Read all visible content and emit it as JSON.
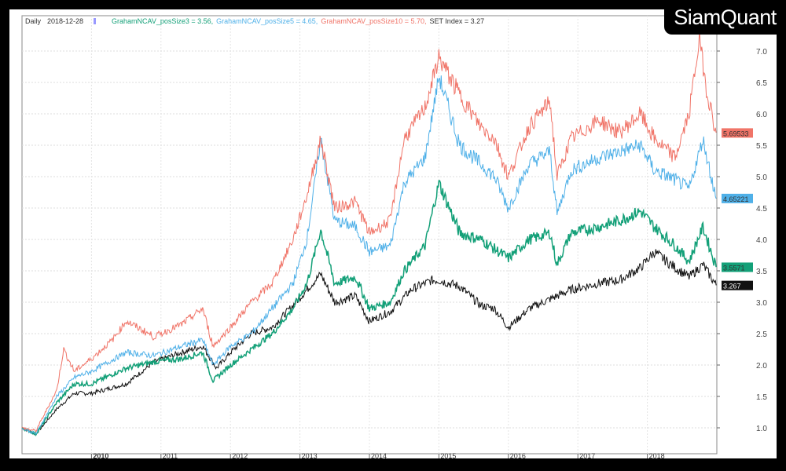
{
  "logo": "SiamQuant",
  "header": {
    "period": "Daily",
    "date": "2018-12-28"
  },
  "colors": {
    "posSize3": "#13a078",
    "posSize5": "#4fb0e8",
    "posSize10": "#f07468",
    "set": "#111111"
  },
  "chart_data": {
    "type": "line",
    "title": "",
    "xlabel": "",
    "ylabel": "",
    "xlim": [
      2009.0,
      2019.0
    ],
    "ylim": [
      0.7,
      7.4
    ],
    "grid": true,
    "x_ticks": [
      "2010",
      "2011",
      "2012",
      "2013",
      "2014",
      "2015",
      "2016",
      "2017",
      "2018"
    ],
    "y_ticks": [
      "1.0",
      "1.5",
      "2.0",
      "2.5",
      "3.0",
      "3.5",
      "4.0",
      "4.5",
      "5.0",
      "5.5",
      "6.0",
      "6.5",
      "7.0"
    ],
    "legend": [
      {
        "name": "GrahamNCAV_posSize3",
        "text": "GrahamNCAV_posSize3 = 3.56,",
        "key": "posSize3"
      },
      {
        "name": "GrahamNCAV_posSize5",
        "text": "GrahamNCAV_posSize5 = 4.65,",
        "key": "posSize5"
      },
      {
        "name": "GrahamNCAV_posSize10",
        "text": "GrahamNCAV_posSize10 = 5.70,",
        "key": "posSize10"
      },
      {
        "name": "SET Index",
        "text": "SET Index = 3.27",
        "key": "set"
      }
    ],
    "series": [
      {
        "name": "GrahamNCAV_posSize10",
        "key": "posSize10",
        "last_label": "5.69533",
        "last": 5.695,
        "x": [
          2009,
          2009.2,
          2009.5,
          2009.6,
          2009.75,
          2010,
          2010.3,
          2010.5,
          2010.9,
          2011.3,
          2011.6,
          2011.75,
          2012,
          2012.3,
          2012.6,
          2012.9,
          2013.1,
          2013.3,
          2013.5,
          2013.8,
          2014,
          2014.3,
          2014.5,
          2014.8,
          2015,
          2015.3,
          2015.6,
          2015.8,
          2016,
          2016.3,
          2016.6,
          2016.7,
          2016.9,
          2017.3,
          2017.6,
          2017.9,
          2018.1,
          2018.4,
          2018.6,
          2018.75,
          2018.85,
          2018.99
        ],
        "y": [
          1.0,
          0.95,
          1.6,
          2.25,
          1.9,
          2.1,
          2.4,
          2.7,
          2.45,
          2.65,
          2.9,
          2.3,
          2.6,
          3.0,
          3.3,
          4.0,
          4.7,
          5.6,
          4.5,
          4.6,
          4.1,
          4.3,
          5.6,
          6.1,
          6.9,
          6.3,
          5.8,
          5.6,
          5.0,
          5.8,
          6.2,
          5.0,
          5.6,
          5.9,
          5.7,
          6.0,
          5.6,
          5.3,
          6.0,
          7.2,
          6.4,
          5.7
        ]
      },
      {
        "name": "GrahamNCAV_posSize5",
        "key": "posSize5",
        "last_label": "4.65221",
        "last": 4.652,
        "x": [
          2009,
          2009.2,
          2009.5,
          2009.75,
          2010,
          2010.5,
          2010.9,
          2011.3,
          2011.6,
          2011.75,
          2012,
          2012.3,
          2012.6,
          2012.9,
          2013.1,
          2013.3,
          2013.5,
          2013.8,
          2014,
          2014.3,
          2014.5,
          2014.8,
          2015,
          2015.3,
          2015.6,
          2015.8,
          2016,
          2016.3,
          2016.6,
          2016.7,
          2016.9,
          2017.3,
          2017.6,
          2017.9,
          2018.1,
          2018.4,
          2018.6,
          2018.8,
          2018.99
        ],
        "y": [
          1.0,
          0.9,
          1.5,
          1.8,
          1.9,
          2.2,
          2.15,
          2.3,
          2.4,
          2.0,
          2.3,
          2.5,
          2.9,
          3.3,
          4.0,
          5.6,
          4.3,
          4.2,
          3.8,
          3.9,
          4.9,
          5.3,
          6.6,
          5.5,
          5.2,
          5.0,
          4.5,
          5.2,
          5.4,
          4.4,
          5.1,
          5.3,
          5.4,
          5.5,
          5.1,
          4.95,
          4.8,
          5.6,
          4.65
        ]
      },
      {
        "name": "GrahamNCAV_posSize3",
        "key": "posSize3",
        "last_label": "3.5571",
        "last": 3.557,
        "x": [
          2009,
          2009.2,
          2009.5,
          2009.75,
          2010,
          2010.5,
          2010.9,
          2011.3,
          2011.6,
          2011.75,
          2012,
          2012.3,
          2012.6,
          2012.9,
          2013.1,
          2013.3,
          2013.5,
          2013.8,
          2014,
          2014.3,
          2014.5,
          2014.8,
          2015,
          2015.3,
          2015.6,
          2015.8,
          2016,
          2016.3,
          2016.6,
          2016.7,
          2016.9,
          2017.3,
          2017.6,
          2017.9,
          2018.1,
          2018.4,
          2018.6,
          2018.8,
          2018.99
        ],
        "y": [
          1.0,
          0.9,
          1.4,
          1.7,
          1.7,
          1.95,
          2.05,
          2.1,
          2.2,
          1.75,
          2.0,
          2.25,
          2.5,
          2.9,
          3.3,
          4.15,
          3.3,
          3.4,
          2.9,
          3.0,
          3.5,
          3.9,
          4.9,
          4.1,
          4.0,
          3.85,
          3.7,
          4.0,
          4.1,
          3.6,
          4.1,
          4.2,
          4.3,
          4.45,
          4.2,
          3.9,
          3.65,
          4.2,
          3.56
        ]
      },
      {
        "name": "SET Index",
        "key": "set",
        "last_label": "3.267",
        "last": 3.267,
        "x": [
          2009,
          2009.2,
          2009.5,
          2009.75,
          2010,
          2010.5,
          2010.9,
          2011.3,
          2011.6,
          2011.8,
          2012,
          2012.3,
          2012.6,
          2012.9,
          2013.3,
          2013.5,
          2013.8,
          2014,
          2014.3,
          2014.6,
          2014.9,
          2015,
          2015.3,
          2015.6,
          2015.8,
          2016,
          2016.3,
          2016.6,
          2016.9,
          2017.3,
          2017.6,
          2017.9,
          2018.1,
          2018.4,
          2018.6,
          2018.8,
          2018.99
        ],
        "y": [
          1.0,
          0.9,
          1.3,
          1.55,
          1.55,
          1.7,
          2.05,
          2.2,
          2.3,
          1.95,
          2.2,
          2.5,
          2.6,
          2.95,
          3.45,
          3.0,
          3.1,
          2.7,
          2.85,
          3.2,
          3.35,
          3.35,
          3.25,
          2.95,
          2.9,
          2.6,
          2.9,
          3.05,
          3.2,
          3.3,
          3.35,
          3.55,
          3.8,
          3.55,
          3.4,
          3.6,
          3.27
        ]
      }
    ]
  }
}
